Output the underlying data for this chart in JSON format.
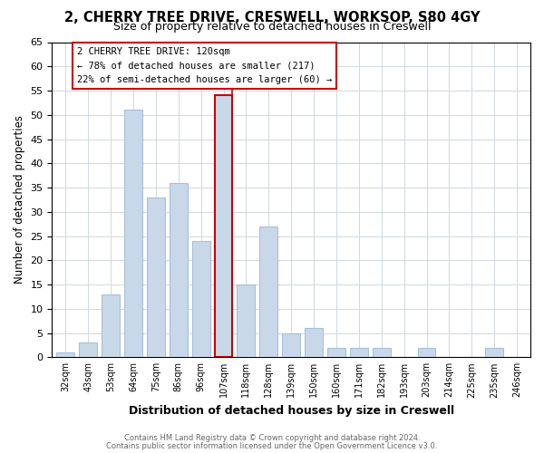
{
  "title": "2, CHERRY TREE DRIVE, CRESWELL, WORKSOP, S80 4GY",
  "subtitle": "Size of property relative to detached houses in Creswell",
  "xlabel": "Distribution of detached houses by size in Creswell",
  "ylabel": "Number of detached properties",
  "bins": [
    "32sqm",
    "43sqm",
    "53sqm",
    "64sqm",
    "75sqm",
    "86sqm",
    "96sqm",
    "107sqm",
    "118sqm",
    "128sqm",
    "139sqm",
    "150sqm",
    "160sqm",
    "171sqm",
    "182sqm",
    "193sqm",
    "203sqm",
    "214sqm",
    "225sqm",
    "235sqm",
    "246sqm"
  ],
  "counts": [
    1,
    3,
    13,
    51,
    33,
    36,
    24,
    54,
    15,
    27,
    5,
    6,
    2,
    2,
    2,
    0,
    2,
    0,
    0,
    2,
    0
  ],
  "bar_color": "#c8d8e8",
  "bar_edge_color": "#a8c0d8",
  "highlight_bar_index": 7,
  "highlight_edge_color": "#cc0000",
  "ylim": [
    0,
    65
  ],
  "yticks": [
    0,
    5,
    10,
    15,
    20,
    25,
    30,
    35,
    40,
    45,
    50,
    55,
    60,
    65
  ],
  "annotation_title": "2 CHERRY TREE DRIVE: 120sqm",
  "annotation_line1": "← 78% of detached houses are smaller (217)",
  "annotation_line2": "22% of semi-detached houses are larger (60) →",
  "annotation_box_edge_color": "#cc0000",
  "footer_line1": "Contains HM Land Registry data © Crown copyright and database right 2024.",
  "footer_line2": "Contains public sector information licensed under the Open Government Licence v3.0.",
  "background_color": "#ffffff",
  "plot_bg_color": "#ffffff",
  "grid_color": "#d0d8e0"
}
